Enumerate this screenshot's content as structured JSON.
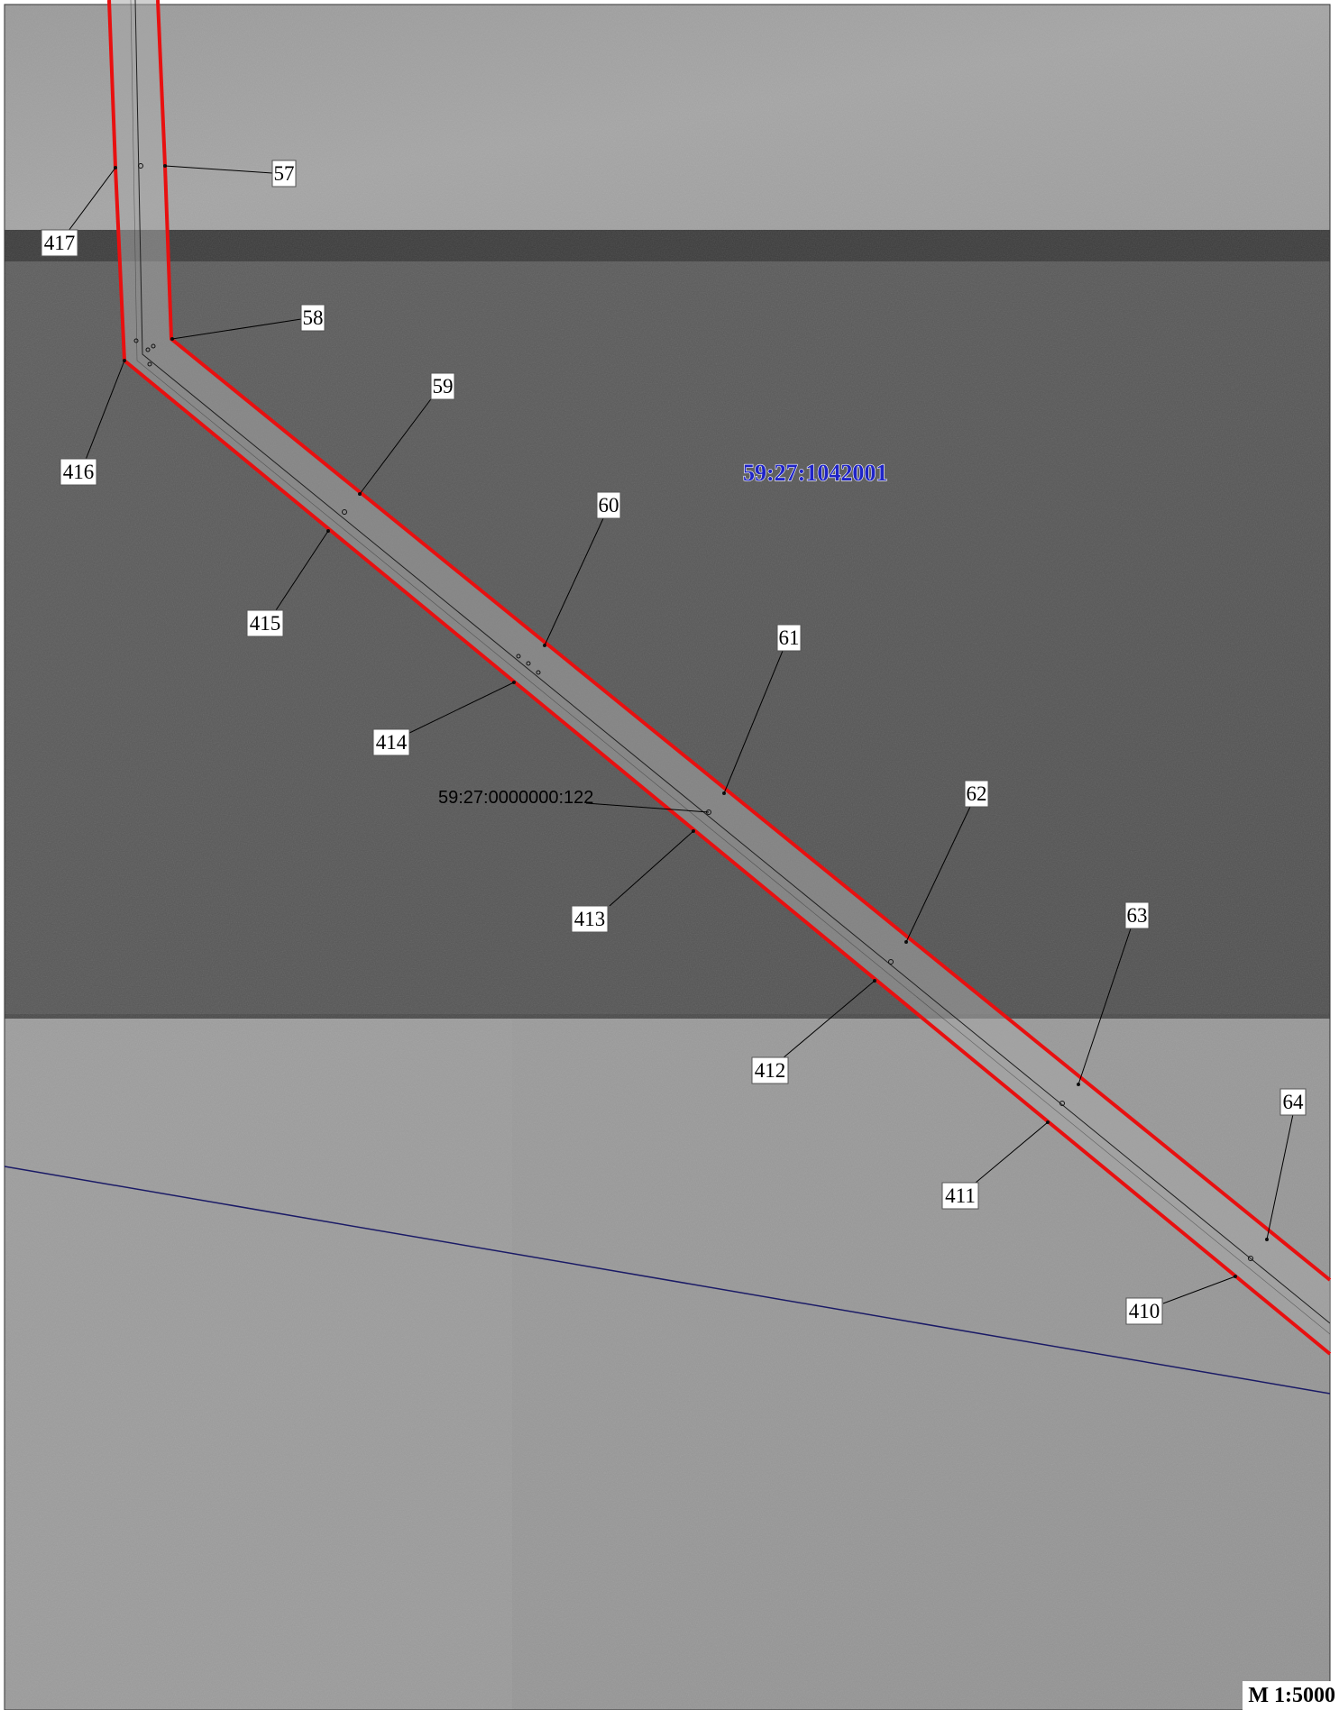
{
  "map": {
    "block_number": "59:27:1042001",
    "parcel_number": "59:27:0000000:122",
    "scale": "M 1:5000",
    "colors": {
      "boundary": "#e81010",
      "block_line": "#1a1a66",
      "block_label": "#1f24c8",
      "leader": "#000000"
    },
    "point_labels": [
      "57",
      "58",
      "59",
      "60",
      "61",
      "62",
      "63",
      "64",
      "410",
      "411",
      "412",
      "413",
      "414",
      "415",
      "416",
      "417"
    ]
  }
}
